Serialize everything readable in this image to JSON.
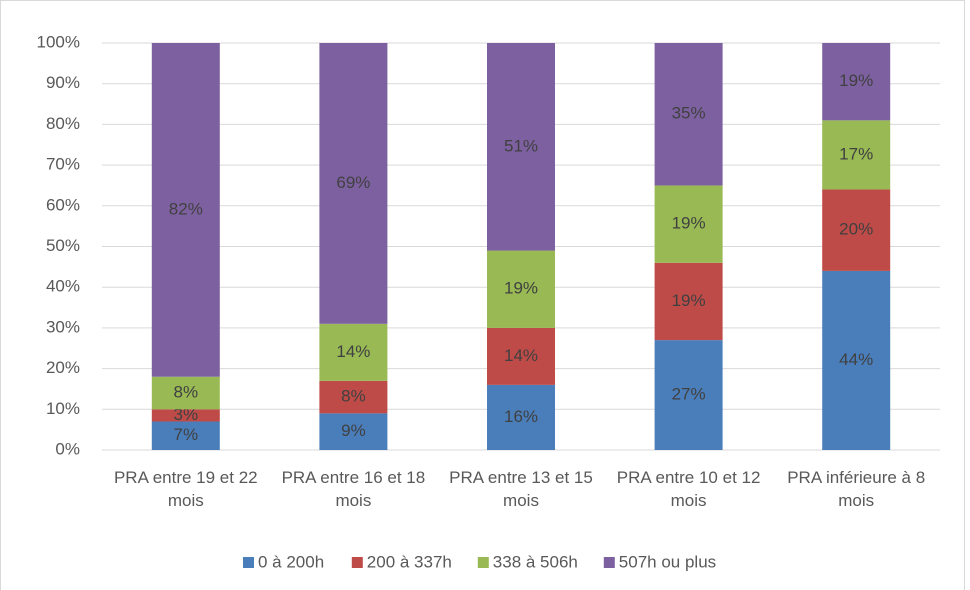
{
  "chart_data": {
    "type": "stacked_bar",
    "categories": [
      "PRA entre 19 et 22 mois",
      "PRA entre 16 et 18 mois",
      "PRA entre 13 et 15 mois",
      "PRA entre 10 et 12 mois",
      "PRA inférieure à 8 mois"
    ],
    "series": [
      {
        "name": "0 à 200h",
        "color": "#4a7ebb",
        "values": [
          7,
          9,
          16,
          27,
          44
        ],
        "value_labels": [
          "7%",
          "9%",
          "16%",
          "27%",
          "44%"
        ]
      },
      {
        "name": "200 à 337h",
        "color": "#be4b48",
        "values": [
          3,
          8,
          14,
          19,
          20
        ],
        "value_labels": [
          "3%",
          "8%",
          "14%",
          "19%",
          "20%"
        ]
      },
      {
        "name": "338 à 506h",
        "color": "#98b954",
        "values": [
          8,
          14,
          19,
          19,
          17
        ],
        "value_labels": [
          "8%",
          "14%",
          "19%",
          "19%",
          "17%"
        ]
      },
      {
        "name": "507h ou plus",
        "color": "#7d60a0",
        "values": [
          82,
          69,
          51,
          35,
          19
        ],
        "value_labels": [
          "82%",
          "69%",
          "51%",
          "35%",
          "19%"
        ]
      }
    ],
    "ylim": [
      0,
      100
    ],
    "yticks": [
      {
        "value": 0,
        "label": "0%"
      },
      {
        "value": 10,
        "label": "10%"
      },
      {
        "value": 20,
        "label": "20%"
      },
      {
        "value": 30,
        "label": "30%"
      },
      {
        "value": 40,
        "label": "40%"
      },
      {
        "value": 50,
        "label": "50%"
      },
      {
        "value": 60,
        "label": "60%"
      },
      {
        "value": 70,
        "label": "70%"
      },
      {
        "value": 80,
        "label": "80%"
      },
      {
        "value": 90,
        "label": "90%"
      },
      {
        "value": 100,
        "label": "100%"
      }
    ],
    "grid": true,
    "legend": "bottom"
  }
}
